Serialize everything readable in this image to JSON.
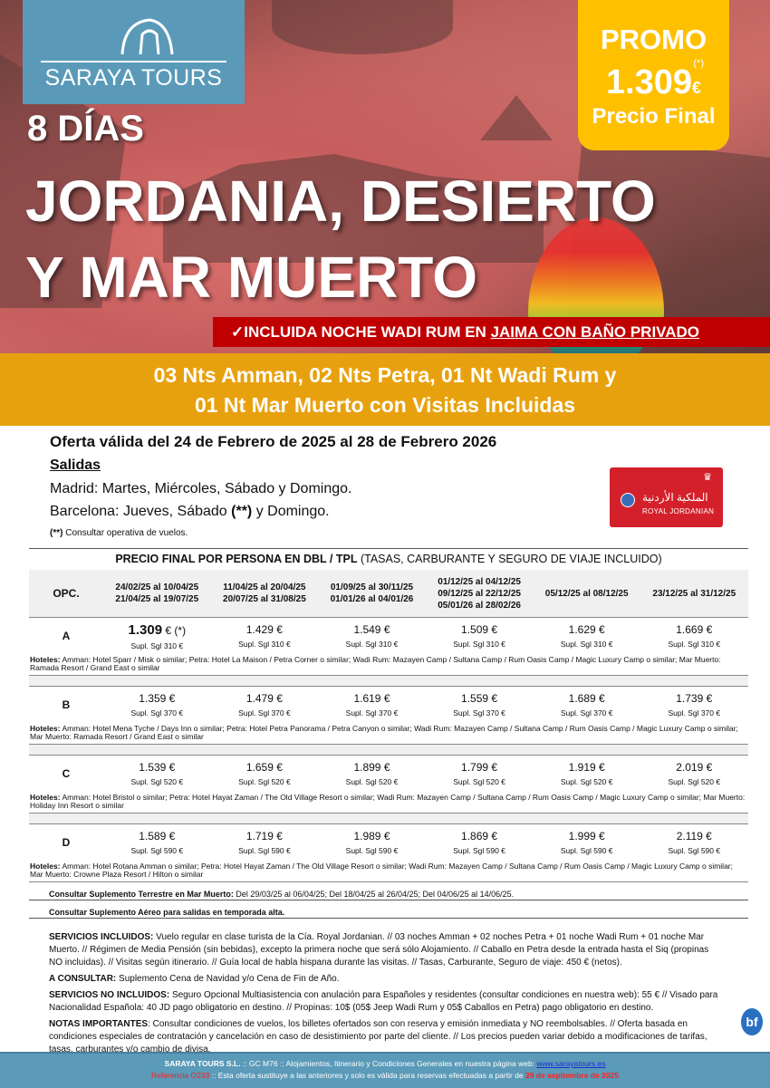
{
  "brand": {
    "name": "SARAYA TOURS",
    "color": "#5a9ab8"
  },
  "promo": {
    "label": "PROMO",
    "price": "1.309",
    "currency": "€",
    "asterisk": "(*)",
    "subtitle": "Precio Final",
    "color": "#ffc000"
  },
  "hero": {
    "days": "8 DÍAS",
    "title_line1": "JORDANIA, DESIERTO",
    "title_line2": "Y MAR MUERTO",
    "badge_check": "✓",
    "badge_text": "INCLUIDA NOCHE WADI RUM EN ",
    "badge_underlined": "JAIMA CON BAÑO PRIVADO",
    "badge_color": "#c00000"
  },
  "band": {
    "line1": "03 Nts Amman,  02 Nts Petra, 01 Nt Wadi Rum y",
    "line2": "01 Nt Mar Muerto con Visitas Incluidas",
    "color": "#e8a10e"
  },
  "offer": "Oferta válida del 24 de Febrero de 2025 al 28 de Febrero 2026",
  "salidas": {
    "title": "Salidas",
    "madrid": "Madrid: Martes, Miércoles, Sábado y Domingo.",
    "barcelona_pre": "Barcelona: Jueves, Sábado ",
    "barcelona_mark": "(**)",
    "barcelona_post": " y Domingo.",
    "note_mark": "(**)",
    "note": " Consultar operativa de vuelos."
  },
  "airline": {
    "name": "ROYAL JORDANIAN",
    "arabic": "الملكية الأردنية"
  },
  "table": {
    "title_bold": "PRECIO FINAL POR PERSONA EN DBL / TPL",
    "title_rest": " (TASAS, CARBURANTE Y SEGURO DE VIAJE INCLUIDO)",
    "opc": "OPC.",
    "columns": [
      [
        "24/02/25 al 10/04/25",
        "21/04/25 al 19/07/25"
      ],
      [
        "11/04/25 al 20/04/25",
        "20/07/25 al 31/08/25"
      ],
      [
        "01/09/25 al 30/11/25",
        "01/01/26 al 04/01/26"
      ],
      [
        "01/12/25 al 04/12/25",
        "09/12/25 al 22/12/25",
        "05/01/26 al 28/02/26"
      ],
      [
        "05/12/25 al 08/12/25"
      ],
      [
        "23/12/25 al 31/12/25"
      ]
    ],
    "hotels_label": "Hoteles:",
    "options": [
      {
        "id": "A",
        "prices": [
          "1.309",
          "1.429 €",
          "1.549 €",
          "1.509 €",
          "1.629 €",
          "1.669 €"
        ],
        "first_suffix": " € (*)",
        "supl": "Supl. Sgl 310 €",
        "hotels": " Amman: Hotel Sparr / Misk o similar; Petra: Hotel La Maison / Petra Corner o similar;  Wadi Rum: Mazayen Camp / Sultana Camp / Rum Oasis Camp / Magic Luxury Camp o similar; Mar Muerto: Ramada Resort / Grand East o similar"
      },
      {
        "id": "B",
        "prices": [
          "1.359 €",
          "1.479 €",
          "1.619 €",
          "1.559 €",
          "1.689 €",
          "1.739 €"
        ],
        "supl": "Supl. Sgl 370 €",
        "hotels": " Amman: Hotel Mena Tyche / Days Inn o similar; Petra: Hotel Petra Panorama / Petra Canyon o similar; Wadi Rum: Mazayen Camp / Sultana Camp / Rum Oasis Camp / Magic Luxury Camp o similar; Mar Muerto: Ramada Resort / Grand East o similar"
      },
      {
        "id": "C",
        "prices": [
          "1.539 €",
          "1.659 €",
          "1.899 €",
          "1.799 €",
          "1.919 €",
          "2.019 €"
        ],
        "supl": "Supl. Sgl 520 €",
        "hotels": "  Amman: Hotel Bristol o similar; Petra: Hotel Hayat Zaman / The Old Village Resort o similar; Wadi Rum: Mazayen Camp / Sultana Camp / Rum Oasis Camp / Magic Luxury Camp o similar; Mar Muerto: Holiday Inn Resort o similar"
      },
      {
        "id": "D",
        "prices": [
          "1.589 €",
          "1.719 €",
          "1.989 €",
          "1.869 €",
          "1.999 €",
          "2.119 €"
        ],
        "supl": "Supl. Sgl 590 €",
        "hotels": " Amman: Hotel Rotana Amman o similar; Petra: Hotel Hayat Zaman / The Old Village Resort o similar; Wadi Rum: Mazayen Camp / Sultana Camp / Rum Oasis Camp / Magic Luxury Camp o similar; Mar Muerto: Crowne Plaza Resort / Hilton o similar"
      }
    ],
    "supp1_bold": "Consultar Suplemento Terrestre en Mar Muerto:",
    "supp1": " Del 29/03/25 al 06/04/25; Del 18/04/25 al 26/04/25; Del 04/06/25 al 14/06/25.",
    "supp2_bold": "Consultar Suplemento Aéreo para salidas en temporada alta."
  },
  "services": {
    "inc_label": "SERVICIOS INCLUIDOS:",
    "inc": " Vuelo regular en clase turista de la Cía. Royal Jordanian. // 03 noches Amman + 02 noches Petra + 01 noche Wadi Rum + 01  noche Mar Muerto. // Régimen de Media Pensión (sin bebidas), excepto la primera noche que será sólo Alojamiento. // Caballo en Petra desde la entrada hasta el Siq (propinas NO incluidas). // Visitas según itinerario. // Guía local de habla hispana durante las visitas. // Tasas, Carburante, Seguro de viaje: 450 € (netos).",
    "cons_label": "A CONSULTAR:",
    "cons": " Suplemento Cena de Navidad y/o Cena de Fin de Año.",
    "noinc_label": "SERVICIOS NO INCLUIDOS:",
    "noinc": " Seguro Opcional Multiasistencia con anulación para Españoles y residentes (consultar condiciones en nuestra web): 55 € // Visado para Nacionalidad Española: 40 JD pago obligatorio en destino. // Propinas: 10$ (05$ Jeep Wadi Rum y 05$ Caballos en Petra) pago obligatorio en destino.",
    "notes_label": "NOTAS IMPORTANTES",
    "notes": ": Consultar condiciones de vuelos, los billetes ofertados son con reserva y emisión inmediata y NO reembolsables. // Oferta basada en condiciones especiales de contratación y cancelación en caso de desistimiento por parte del cliente. // Los precios pueden variar debido a modificaciones de tarifas, tasas, carburantes y/o cambio de divisa."
  },
  "footer": {
    "company": "SARAYA TOURS S.L.",
    "line1": " :: GC M76 ::  Alojamientos, Itinerario y Condiciones Generales en nuestra página web:  ",
    "web": "www.sarayatours.es",
    "ref": "Referencia O233",
    "line2": " :: Esta oferta sustituye a las anteriores y solo es válida para reservas efectuadas a partir de ",
    "date": "29 de septiembre de 2025",
    "color": "#5b9ab8"
  },
  "badge_bf": "bf"
}
